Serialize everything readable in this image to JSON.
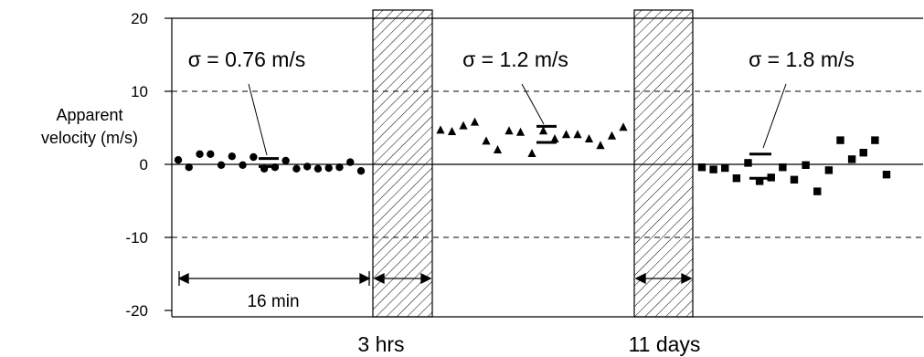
{
  "chart_data": {
    "type": "scatter",
    "ylabel_lines": [
      "Apparent",
      "velocity (m/s)"
    ],
    "ylim": [
      -20,
      20
    ],
    "yticks": [
      20,
      10,
      0,
      -10,
      -20
    ],
    "grid": "dashed at ±10",
    "gaps": [
      {
        "label": "3 hrs",
        "style": "hatched"
      },
      {
        "label": "11 days",
        "style": "hatched"
      }
    ],
    "duration_annotation": "16 min",
    "series": [
      {
        "marker": "circle",
        "sigma_label": "σ = 0.76 m/s",
        "values": [
          0.6,
          -0.4,
          1.4,
          1.4,
          -0.1,
          1.1,
          -0.1,
          1.0,
          -0.6,
          -0.4,
          0.5,
          -0.6,
          -0.3,
          -0.6,
          -0.5,
          -0.4,
          0.3,
          -0.9
        ],
        "mean_bars": [
          0.8,
          -0.3
        ]
      },
      {
        "marker": "triangle",
        "sigma_label": "σ = 1.2 m/s",
        "values": [
          4.7,
          4.5,
          5.3,
          5.8,
          3.2,
          2.0,
          4.6,
          4.4,
          1.5,
          4.6,
          3.5,
          4.1,
          4.1,
          3.5,
          2.6,
          3.9,
          5.1
        ],
        "mean_bars": [
          5.2,
          3.0
        ]
      },
      {
        "marker": "square",
        "sigma_label": "σ = 1.8 m/s",
        "values": [
          -0.4,
          -0.7,
          -0.5,
          -1.9,
          0.2,
          -2.3,
          -1.8,
          -0.4,
          -2.1,
          -0.1,
          -3.7,
          -0.8,
          3.3,
          0.7,
          1.6,
          3.3,
          -1.4
        ],
        "mean_bars": [
          1.4,
          -1.9
        ]
      }
    ]
  }
}
